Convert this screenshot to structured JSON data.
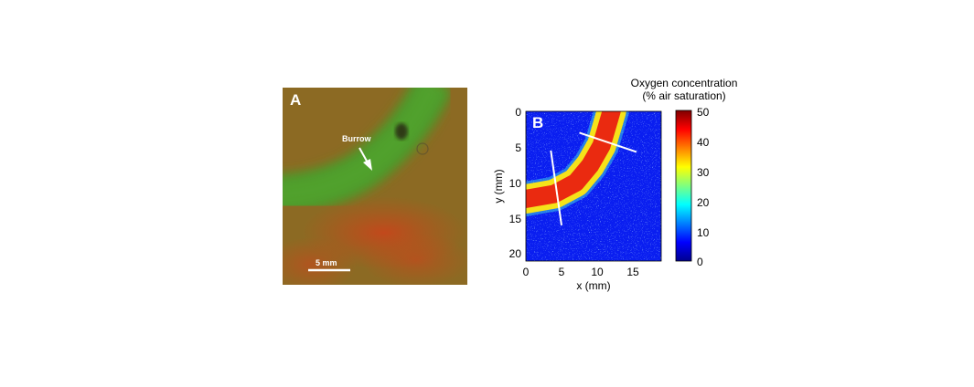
{
  "panel_a": {
    "label": "A",
    "annotation": "Burrow",
    "scale_bar_label": "5 mm"
  },
  "panel_b": {
    "label": "B",
    "xlabel": "x (mm)",
    "ylabel": "y (mm)",
    "xticks": [
      "0",
      "5",
      "10",
      "15"
    ],
    "yticks": [
      "0",
      "5",
      "10",
      "15",
      "20"
    ],
    "colorbar_title_line1": "Oxygen concentration",
    "colorbar_title_line2": "(% air saturation)",
    "colorbar_ticks": [
      "50",
      "40",
      "30",
      "20",
      "10",
      "0"
    ]
  },
  "chart_data": {
    "type": "heatmap",
    "xlabel": "x (mm)",
    "ylabel": "y (mm)",
    "xlim": [
      0,
      19
    ],
    "ylim": [
      21,
      0
    ],
    "clim": [
      0,
      50
    ],
    "colormap": "jet",
    "colorbar_title": "Oxygen concentration (% air saturation)",
    "burrow_centerline_mm": [
      [
        0,
        12.3
      ],
      [
        4,
        11.6
      ],
      [
        7,
        10.0
      ],
      [
        9,
        7.6
      ],
      [
        10.6,
        4.8
      ],
      [
        12.0,
        0
      ]
    ],
    "burrow_center_value": 45,
    "background_value": 3,
    "transect_lines_mm": [
      [
        [
          3.5,
          5.5
        ],
        [
          5.0,
          16.0
        ]
      ],
      [
        [
          7.5,
          3.0
        ],
        [
          15.5,
          5.7
        ]
      ]
    ]
  }
}
